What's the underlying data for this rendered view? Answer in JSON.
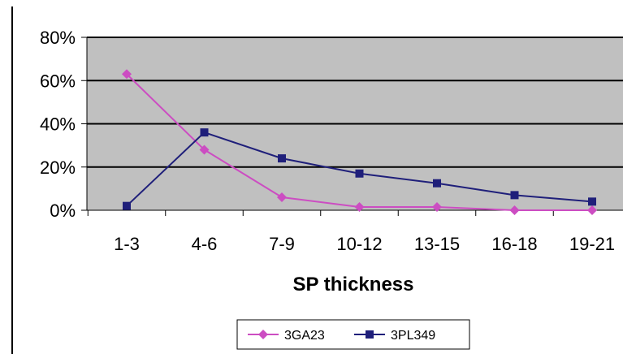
{
  "chart_data": {
    "type": "line",
    "title": "",
    "xlabel": "SP thickness",
    "ylabel": "",
    "categories": [
      "1-3",
      "4-6",
      "7-9",
      "10-12",
      "13-15",
      "16-18",
      "19-21"
    ],
    "ylim": [
      0,
      80
    ],
    "yticks": [
      0,
      20,
      40,
      60,
      80
    ],
    "ytick_labels": [
      "0%",
      "20%",
      "40%",
      "60%",
      "80%"
    ],
    "grid": true,
    "legend_position": "bottom",
    "plot_background": "#c0c0c0",
    "gridline_color": "#000000",
    "series": [
      {
        "name": "3GA23",
        "values": [
          63,
          28,
          6,
          1.5,
          1.5,
          0,
          0
        ],
        "color": "#cc4dc2",
        "marker": "diamond"
      },
      {
        "name": "3PL349",
        "values": [
          2,
          36,
          24,
          17,
          12.5,
          7,
          4
        ],
        "color": "#1f1f7a",
        "marker": "square"
      }
    ]
  }
}
